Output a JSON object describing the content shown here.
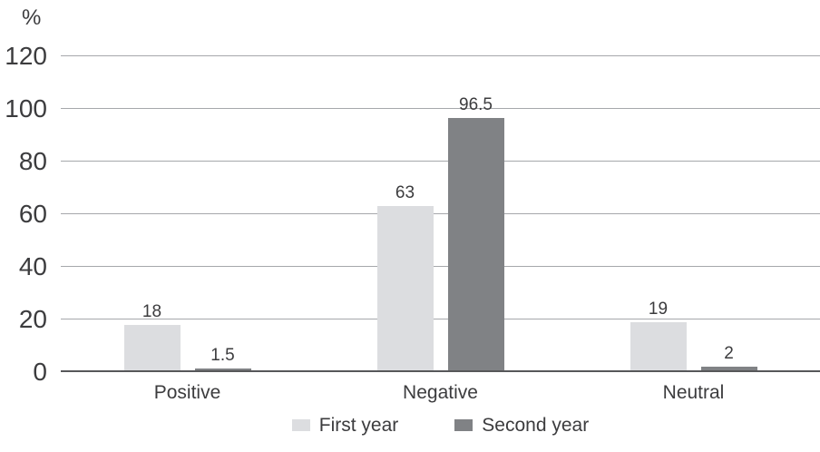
{
  "chart_data": {
    "type": "bar",
    "title": "",
    "xlabel": "",
    "ylabel": "%",
    "categories": [
      "Positive",
      "Negative",
      "Neutral"
    ],
    "series": [
      {
        "name": "First year",
        "color": "#dcdde0",
        "values": [
          18,
          63,
          19
        ]
      },
      {
        "name": "Second year",
        "color": "#808285",
        "values": [
          1.5,
          96.5,
          2
        ]
      }
    ],
    "yticks": [
      0,
      20,
      40,
      60,
      80,
      100,
      120
    ],
    "ylim": [
      0,
      120
    ],
    "grid": true,
    "value_labels_shown": true,
    "legend_position": "bottom"
  },
  "style": {
    "gridline_color": "#a6a8ab",
    "axis_line_color": "#57585a",
    "text_color": "#3c3c3e",
    "background": "#ffffff"
  }
}
